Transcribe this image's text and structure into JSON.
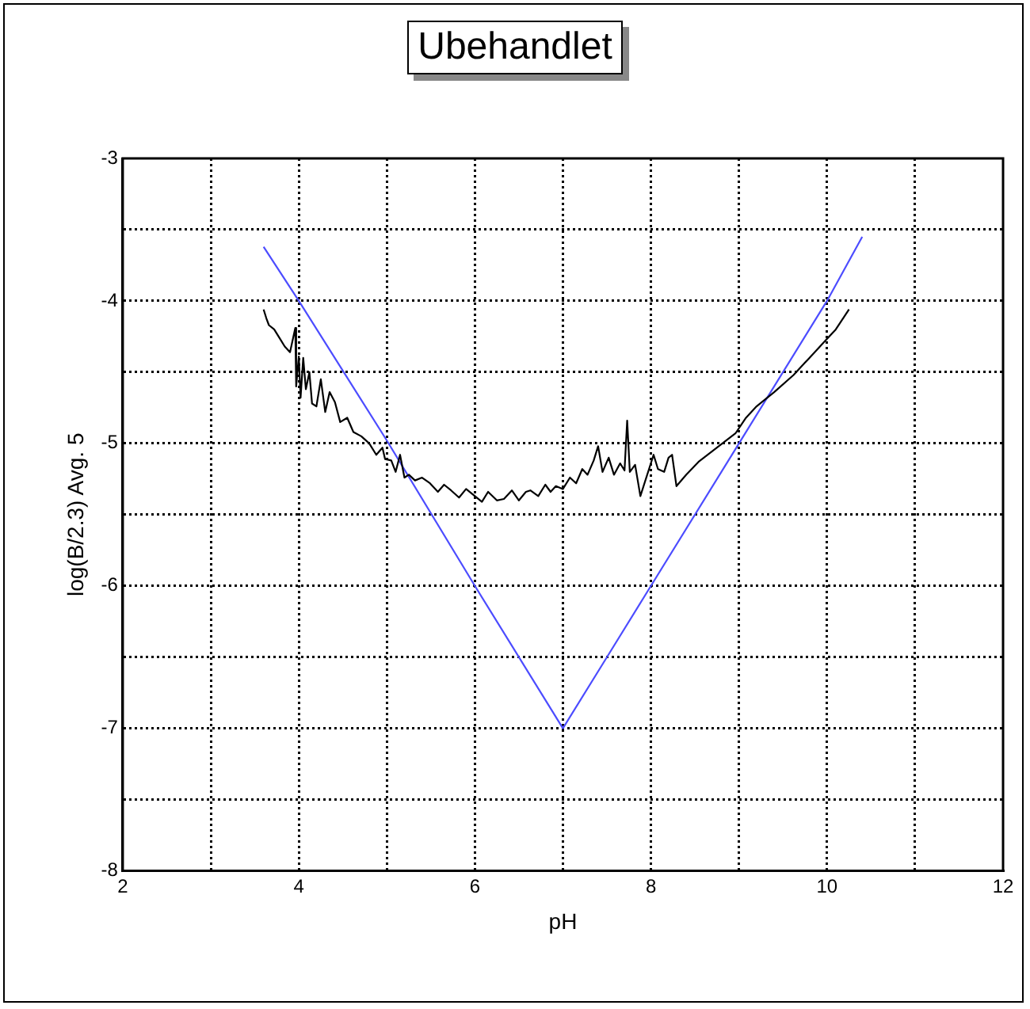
{
  "chart_data": {
    "type": "line",
    "title": "Ubehandlet",
    "xlabel": "pH",
    "ylabel": "log(B/2.3) Avg. 5",
    "xlim": [
      2,
      12
    ],
    "xticks": [
      2,
      {
        "value": 3,
        "label": null
      },
      4,
      {
        "value": 5,
        "label": null
      },
      6,
      {
        "value": 7,
        "label": null
      },
      8,
      {
        "value": 9,
        "label": null
      },
      10,
      {
        "value": 11,
        "label": null
      },
      12
    ],
    "ylim": [
      -8,
      -3
    ],
    "yticks": [
      -8,
      {
        "value": -7.5,
        "label": null
      },
      -7,
      {
        "value": -6.5,
        "label": null
      },
      -6,
      {
        "value": -5.5,
        "label": null
      },
      -5,
      {
        "value": -4.5,
        "label": null
      },
      -4,
      {
        "value": -3.5,
        "label": null
      },
      -3
    ],
    "grid": true,
    "legend": false,
    "marker": "none",
    "line_style": "solid",
    "series": [
      {
        "color": "#000000",
        "x": [
          3.6,
          3.63,
          3.66,
          3.72,
          3.78,
          3.84,
          3.9,
          3.96,
          3.97,
          4.0,
          4.02,
          4.05,
          4.08,
          4.12,
          4.15,
          4.2,
          4.25,
          4.3,
          4.35,
          4.41,
          4.47,
          4.55,
          4.62,
          4.71,
          4.8,
          4.88,
          4.95,
          4.98,
          5.05,
          5.1,
          5.15,
          5.2,
          5.25,
          5.32,
          5.4,
          5.49,
          5.58,
          5.65,
          5.73,
          5.82,
          5.9,
          6.0,
          6.08,
          6.15,
          6.25,
          6.33,
          6.42,
          6.5,
          6.58,
          6.63,
          6.72,
          6.8,
          6.86,
          6.92,
          7.0,
          7.08,
          7.15,
          7.22,
          7.28,
          7.35,
          7.4,
          7.45,
          7.52,
          7.58,
          7.65,
          7.7,
          7.73,
          7.76,
          7.82,
          7.88,
          8.03,
          8.08,
          8.15,
          8.2,
          8.24,
          8.29,
          8.4,
          8.54,
          8.75,
          8.96,
          9.08,
          9.2,
          9.4,
          9.62,
          9.8,
          9.98,
          10.1,
          10.25
        ],
        "values": [
          -4.06,
          -4.12,
          -4.17,
          -4.2,
          -4.26,
          -4.32,
          -4.36,
          -4.19,
          -4.6,
          -4.39,
          -4.68,
          -4.4,
          -4.62,
          -4.5,
          -4.72,
          -4.74,
          -4.55,
          -4.78,
          -4.64,
          -4.71,
          -4.85,
          -4.82,
          -4.92,
          -4.95,
          -5.0,
          -5.08,
          -5.03,
          -5.11,
          -5.12,
          -5.2,
          -5.08,
          -5.24,
          -5.22,
          -5.26,
          -5.24,
          -5.28,
          -5.34,
          -5.29,
          -5.33,
          -5.38,
          -5.32,
          -5.37,
          -5.41,
          -5.34,
          -5.4,
          -5.39,
          -5.33,
          -5.4,
          -5.34,
          -5.33,
          -5.37,
          -5.29,
          -5.34,
          -5.3,
          -5.32,
          -5.24,
          -5.28,
          -5.18,
          -5.22,
          -5.12,
          -5.02,
          -5.2,
          -5.1,
          -5.22,
          -5.14,
          -5.19,
          -4.84,
          -5.2,
          -5.15,
          -5.37,
          -5.08,
          -5.18,
          -5.2,
          -5.1,
          -5.08,
          -5.3,
          -5.22,
          -5.13,
          -5.03,
          -4.93,
          -4.82,
          -4.74,
          -4.64,
          -4.52,
          -4.4,
          -4.28,
          -4.2,
          -4.06
        ]
      },
      {
        "color": "#4c4cff",
        "x": [
          3.6,
          4.0,
          5.0,
          6.0,
          7.0,
          8.0,
          9.0,
          10.0,
          10.4
        ],
        "values": [
          -3.62,
          -4.0,
          -4.98,
          -6.0,
          -7.0,
          -6.0,
          -5.0,
          -4.0,
          -3.55
        ]
      }
    ]
  }
}
